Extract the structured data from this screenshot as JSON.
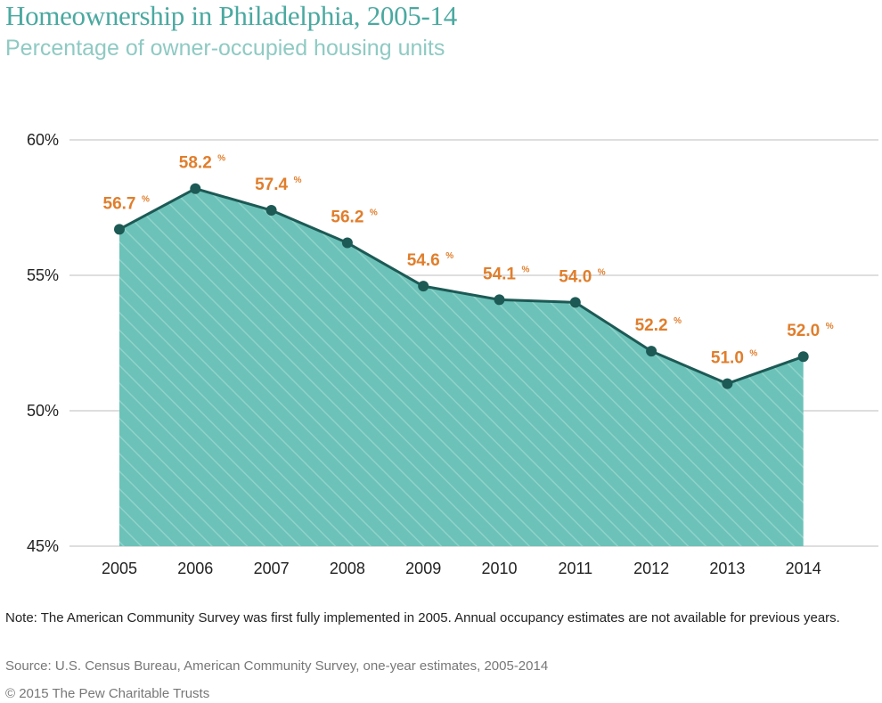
{
  "chart_data": {
    "type": "area",
    "title": "Homeownership in Philadelphia, 2005-14",
    "subtitle": "Percentage of owner-occupied housing units",
    "x": [
      "2005",
      "2006",
      "2007",
      "2008",
      "2009",
      "2010",
      "2011",
      "2012",
      "2013",
      "2014"
    ],
    "values": [
      56.7,
      58.2,
      57.4,
      56.2,
      54.6,
      54.1,
      54.0,
      52.2,
      51.0,
      52.0
    ],
    "data_labels": [
      "56.7",
      "58.2",
      "57.4",
      "56.2",
      "54.6",
      "54.1",
      "54.0",
      "52.2",
      "51.0",
      "52.0"
    ],
    "data_label_suffix": "%",
    "yticks": [
      45,
      50,
      55,
      60
    ],
    "ytick_labels": [
      "45%",
      "50%",
      "55%",
      "60%"
    ],
    "ylim": [
      45,
      60
    ],
    "xlabel": "",
    "ylabel": "",
    "grid": true,
    "legend": "none",
    "colors": {
      "fill": "#6cc2b8",
      "hatch": "#8fd3ca",
      "line": "#1d5a55",
      "marker": "#1d5a55",
      "label": "#e07e2c",
      "grid": "#bdbdbd"
    }
  },
  "footer": {
    "note": "Note: The American Community Survey was first fully implemented in 2005. Annual occupancy estimates are not available for previous years.",
    "source": "Source: U.S. Census Bureau, American Community Survey, one-year estimates, 2005-2014",
    "copyright": "© 2015 The Pew Charitable Trusts"
  }
}
